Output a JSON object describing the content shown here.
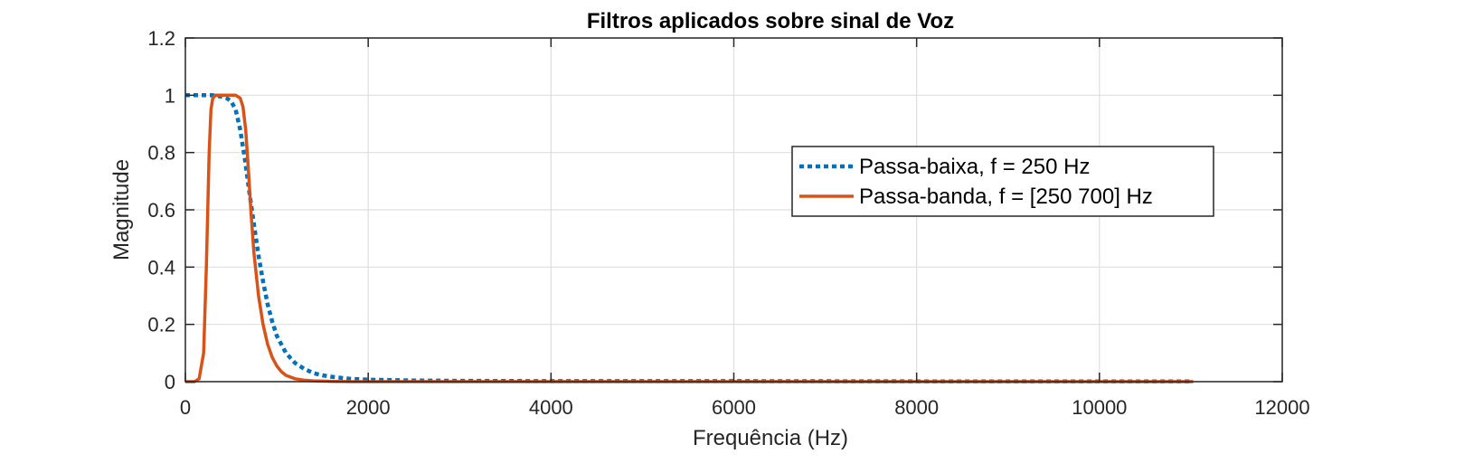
{
  "chart_data": {
    "type": "line",
    "title": "Filtros aplicados sobre sinal de Voz",
    "xlabel": "Frequência (Hz)",
    "ylabel": "Magnitude",
    "xlim": [
      0,
      12000
    ],
    "ylim": [
      0,
      1.2
    ],
    "xticks": [
      0,
      2000,
      4000,
      6000,
      8000,
      10000,
      12000
    ],
    "xtick_labels": [
      "0",
      "2000",
      "4000",
      "6000",
      "8000",
      "10000",
      "12000"
    ],
    "yticks": [
      0,
      0.2,
      0.4,
      0.6,
      0.8,
      1,
      1.2
    ],
    "ytick_labels": [
      "0",
      "0.2",
      "0.4",
      "0.6",
      "0.8",
      "1",
      "1.2"
    ],
    "grid": true,
    "legend_position": "top-right",
    "series": [
      {
        "name": "Passa-baixa, f = 250 Hz",
        "color": "#0072BD",
        "style": "dotted",
        "x": [
          0,
          100,
          200,
          300,
          400,
          450,
          500,
          550,
          600,
          650,
          700,
          750,
          800,
          850,
          900,
          950,
          1000,
          1100,
          1200,
          1300,
          1400,
          1500,
          1600,
          1800,
          2000,
          2500,
          3000,
          4000,
          5000,
          6000,
          8000,
          10000,
          11025
        ],
        "y": [
          1.0,
          1.0,
          1.0,
          1.0,
          0.995,
          0.99,
          0.98,
          0.95,
          0.88,
          0.78,
          0.66,
          0.55,
          0.44,
          0.35,
          0.27,
          0.21,
          0.16,
          0.1,
          0.065,
          0.045,
          0.03,
          0.022,
          0.017,
          0.01,
          0.007,
          0.004,
          0.003,
          0.002,
          0.002,
          0.002,
          0.001,
          0.001,
          0.001
        ]
      },
      {
        "name": "Passa-banda, f = [250  700] Hz",
        "color": "#D95319",
        "style": "solid",
        "x": [
          0,
          100,
          150,
          200,
          230,
          260,
          280,
          300,
          330,
          380,
          450,
          550,
          600,
          630,
          660,
          690,
          720,
          750,
          800,
          850,
          900,
          950,
          1000,
          1050,
          1100,
          1200,
          1300,
          1400,
          1500,
          1600,
          1800,
          2000,
          2500,
          3000,
          4000,
          6000,
          8000,
          10000,
          11025
        ],
        "y": [
          0.0,
          0.0,
          0.01,
          0.1,
          0.4,
          0.8,
          0.95,
          0.99,
          1.0,
          1.0,
          1.0,
          1.0,
          0.99,
          0.96,
          0.88,
          0.74,
          0.58,
          0.45,
          0.3,
          0.2,
          0.13,
          0.085,
          0.055,
          0.035,
          0.022,
          0.01,
          0.005,
          0.003,
          0.002,
          0.001,
          0.0,
          0.0,
          0.0,
          0.0,
          0.0,
          0.0,
          0.0,
          0.0,
          0.0
        ]
      }
    ]
  }
}
